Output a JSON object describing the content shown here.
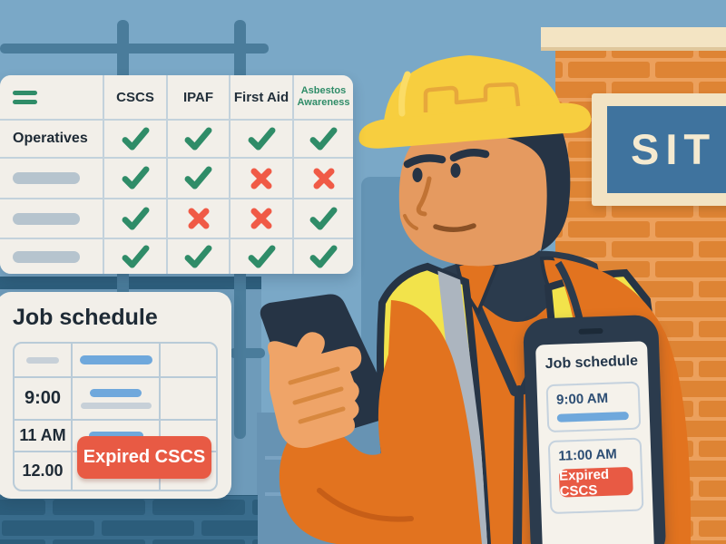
{
  "training_matrix": {
    "columns": [
      "CSCS",
      "IPAF",
      "First Aid",
      "Asbestos Awareness"
    ],
    "rows": [
      {
        "label": "Operatives",
        "marks": [
          "check",
          "check",
          "check",
          "check"
        ]
      },
      {
        "label": "",
        "marks": [
          "check",
          "check",
          "x",
          "x"
        ]
      },
      {
        "label": "",
        "marks": [
          "check",
          "x",
          "x",
          "check"
        ]
      },
      {
        "label": "",
        "marks": [
          "check",
          "check",
          "check",
          "check"
        ]
      }
    ]
  },
  "job_schedule_card": {
    "title": "Job schedule",
    "times": [
      "9:00",
      "11 AM",
      "12.00"
    ],
    "badge": "Expired CSCS"
  },
  "phone_screen": {
    "title": "Job schedule",
    "slots": [
      {
        "time": "9:00 AM"
      },
      {
        "time": "11:00 AM",
        "badge": "Expired CSCS"
      }
    ]
  },
  "site_sign": {
    "text": "SIT"
  },
  "colors": {
    "check_green": "#2F8C68",
    "cross_red": "#F05A46",
    "alert_red": "#E85A44",
    "pill_blue": "#6FA8DC",
    "pill_gray": "#B6C4CE",
    "sky_blue": "#7AA8C7",
    "building_blue": "#6E9BBA",
    "scaffold_blue": "#4A7C9B",
    "brick_orange": "#DE8434",
    "teal_brick": "#2C5D7B",
    "vest_yellow": "#F2E34B",
    "hivis_orange": "#E2731F",
    "hat_yellow": "#F7CE3F",
    "navy": "#2B3B4D",
    "sign_blue": "#3F739E",
    "card_cream": "#F2EFE9"
  }
}
